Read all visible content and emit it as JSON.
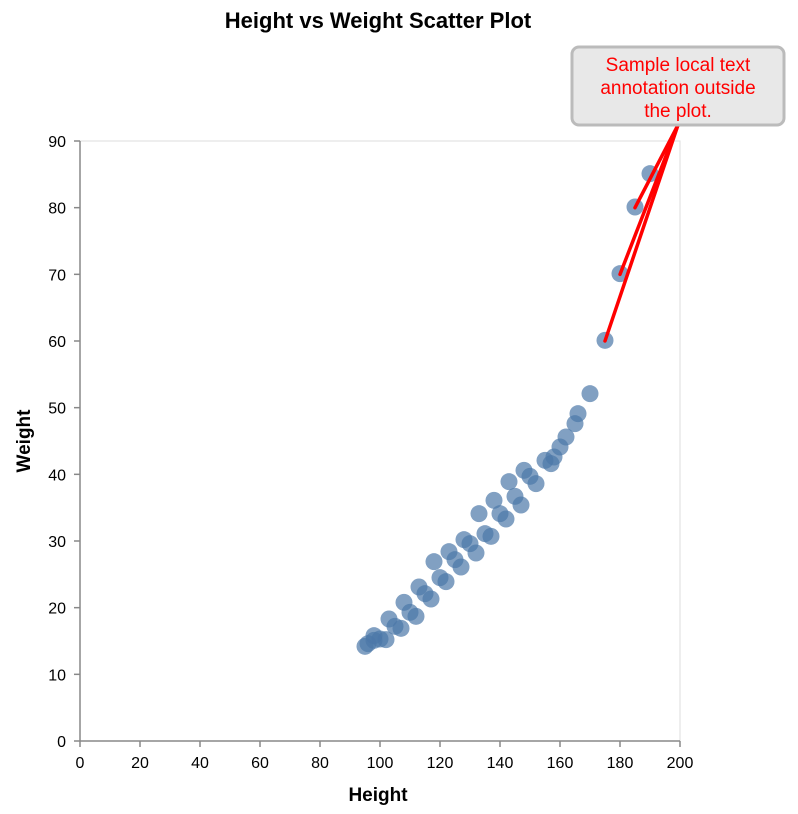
{
  "chart_data": {
    "type": "scatter",
    "title": "Height vs Weight Scatter Plot",
    "xlabel": "Height",
    "ylabel": "Weight",
    "xlim": [
      0,
      200
    ],
    "ylim": [
      0,
      90
    ],
    "x_ticks": [
      0,
      20,
      40,
      60,
      80,
      100,
      120,
      140,
      160,
      180,
      200
    ],
    "y_ticks": [
      0,
      10,
      20,
      30,
      40,
      50,
      60,
      70,
      80,
      90
    ],
    "grid": false,
    "colors": {
      "point": "#4c78a8",
      "annotation_text": "#ff0000",
      "annotation_line": "#ff0000",
      "annotation_box_fill": "#e8e8e8",
      "annotation_box_border": "#bbbbbb"
    },
    "points": [
      {
        "x": 95,
        "y": 14.2
      },
      {
        "x": 96,
        "y": 14.6
      },
      {
        "x": 98,
        "y": 15.1
      },
      {
        "x": 98,
        "y": 15.8
      },
      {
        "x": 100,
        "y": 15.3
      },
      {
        "x": 102,
        "y": 15.2
      },
      {
        "x": 103,
        "y": 18.3
      },
      {
        "x": 105,
        "y": 17.2
      },
      {
        "x": 107,
        "y": 16.9
      },
      {
        "x": 108,
        "y": 20.8
      },
      {
        "x": 110,
        "y": 19.3
      },
      {
        "x": 112,
        "y": 18.7
      },
      {
        "x": 113,
        "y": 23.1
      },
      {
        "x": 115,
        "y": 22.1
      },
      {
        "x": 117,
        "y": 21.3
      },
      {
        "x": 118,
        "y": 26.9
      },
      {
        "x": 120,
        "y": 24.5
      },
      {
        "x": 122,
        "y": 23.9
      },
      {
        "x": 123,
        "y": 28.4
      },
      {
        "x": 125,
        "y": 27.2
      },
      {
        "x": 127,
        "y": 26.1
      },
      {
        "x": 128,
        "y": 30.2
      },
      {
        "x": 130,
        "y": 29.6
      },
      {
        "x": 132,
        "y": 28.2
      },
      {
        "x": 133,
        "y": 34.1
      },
      {
        "x": 135,
        "y": 31.1
      },
      {
        "x": 137,
        "y": 30.7
      },
      {
        "x": 138,
        "y": 36.1
      },
      {
        "x": 140,
        "y": 34.1
      },
      {
        "x": 142,
        "y": 33.3
      },
      {
        "x": 143,
        "y": 38.9
      },
      {
        "x": 145,
        "y": 36.7
      },
      {
        "x": 147,
        "y": 35.4
      },
      {
        "x": 148,
        "y": 40.6
      },
      {
        "x": 150,
        "y": 39.7
      },
      {
        "x": 152,
        "y": 38.6
      },
      {
        "x": 155,
        "y": 42.1
      },
      {
        "x": 157,
        "y": 41.6
      },
      {
        "x": 158,
        "y": 42.6
      },
      {
        "x": 160,
        "y": 44.1
      },
      {
        "x": 162,
        "y": 45.6
      },
      {
        "x": 165,
        "y": 47.6
      },
      {
        "x": 166,
        "y": 49.1
      },
      {
        "x": 170,
        "y": 52.1
      },
      {
        "x": 175,
        "y": 60.1
      },
      {
        "x": 180,
        "y": 70.1
      },
      {
        "x": 185,
        "y": 80.1
      },
      {
        "x": 190,
        "y": 85.1
      }
    ],
    "annotation": {
      "text_lines": [
        "Sample local text",
        "annotation outside",
        "the plot."
      ],
      "targets": [
        {
          "x": 175,
          "y": 60
        },
        {
          "x": 180,
          "y": 70
        },
        {
          "x": 185,
          "y": 80
        }
      ]
    }
  }
}
